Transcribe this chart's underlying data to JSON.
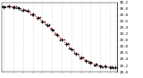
{
  "hours": [
    0,
    1,
    2,
    3,
    4,
    5,
    6,
    7,
    8,
    9,
    10,
    11,
    12,
    13,
    14,
    15,
    16,
    17,
    18,
    19,
    20,
    21,
    22,
    23
  ],
  "pressure": [
    30.05,
    30.08,
    30.06,
    30.02,
    29.97,
    29.92,
    29.82,
    29.72,
    29.6,
    29.48,
    29.34,
    29.18,
    29.02,
    28.88,
    28.72,
    28.58,
    28.45,
    28.35,
    28.28,
    28.22,
    28.18,
    28.16,
    28.14,
    28.13
  ],
  "ylim": [
    28.0,
    30.2
  ],
  "yticks": [
    28.0,
    28.2,
    28.4,
    28.6,
    28.8,
    29.0,
    29.2,
    29.4,
    29.6,
    29.8,
    30.0,
    30.2
  ],
  "ytick_labels": [
    "28.0",
    "28.2",
    "28.4",
    "28.6",
    "28.8",
    "29.0",
    "29.2",
    "29.4",
    "29.6",
    "29.8",
    "30.0",
    "30.2"
  ],
  "xtick_positions": [
    0,
    2,
    4,
    6,
    8,
    10,
    12,
    14,
    16,
    18,
    20,
    22,
    23
  ],
  "xtick_labels": [
    "",
    "",
    "",
    "",
    "",
    "",
    "",
    "",
    "",
    "",
    "",
    "",
    ""
  ],
  "line_color": "#ff0000",
  "marker_color": "#000000",
  "grid_color": "#bbbbbb",
  "bg_color": "#ffffff",
  "tick_fontsize": 3.0,
  "marker_noise_x": [
    -0.35,
    -0.15,
    0.0,
    0.15,
    0.35,
    -0.3,
    -0.1,
    0.1,
    0.3,
    -0.35,
    -0.15,
    0.15,
    0.35,
    -0.25,
    0.0,
    0.25,
    -0.3,
    0.0,
    0.3,
    -0.2,
    0.2,
    -0.15,
    0.15,
    0.0
  ],
  "marker_noise_y": [
    0.02,
    -0.02,
    0.0,
    0.03,
    -0.01,
    0.01,
    -0.03,
    0.02,
    -0.01,
    0.03,
    -0.02,
    0.01,
    -0.03,
    0.02,
    -0.01,
    0.02,
    -0.02,
    0.01,
    -0.01,
    0.03,
    -0.02,
    0.01,
    -0.01,
    0.02
  ]
}
